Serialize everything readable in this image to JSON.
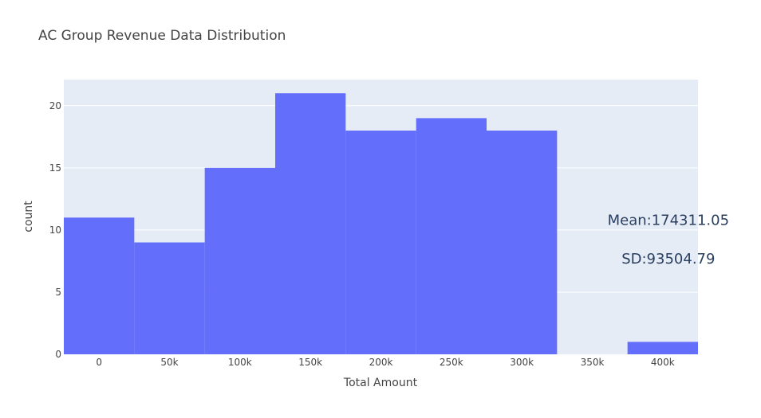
{
  "chart_data": {
    "type": "bar",
    "title": "AC Group Revenue Data Distribution",
    "xlabel": "Total Amount",
    "ylabel": "count",
    "bin_width": 50000,
    "bins": [
      {
        "start": -25000,
        "end": 25000,
        "count": 11
      },
      {
        "start": 25000,
        "end": 75000,
        "count": 9
      },
      {
        "start": 75000,
        "end": 125000,
        "count": 15
      },
      {
        "start": 125000,
        "end": 175000,
        "count": 21
      },
      {
        "start": 175000,
        "end": 225000,
        "count": 18
      },
      {
        "start": 225000,
        "end": 275000,
        "count": 19
      },
      {
        "start": 275000,
        "end": 325000,
        "count": 18
      },
      {
        "start": 325000,
        "end": 375000,
        "count": 0
      },
      {
        "start": 375000,
        "end": 425000,
        "count": 1
      }
    ],
    "xlim": [
      -25000,
      425000
    ],
    "ylim": [
      0,
      22.1
    ],
    "x_ticks": [
      {
        "value": 0,
        "label": "0"
      },
      {
        "value": 50000,
        "label": "50k"
      },
      {
        "value": 100000,
        "label": "100k"
      },
      {
        "value": 150000,
        "label": "150k"
      },
      {
        "value": 200000,
        "label": "200k"
      },
      {
        "value": 250000,
        "label": "250k"
      },
      {
        "value": 300000,
        "label": "300k"
      },
      {
        "value": 350000,
        "label": "350k"
      },
      {
        "value": 400000,
        "label": "400k"
      }
    ],
    "y_ticks": [
      {
        "value": 0,
        "label": "0"
      },
      {
        "value": 5,
        "label": "5"
      },
      {
        "value": 10,
        "label": "10"
      },
      {
        "value": 15,
        "label": "15"
      },
      {
        "value": 20,
        "label": "20"
      }
    ],
    "grid": true,
    "annotations": [
      {
        "text": "Mean:174311.05",
        "x": 400000,
        "y": 10.8
      },
      {
        "text": "SD:93504.79",
        "x": 400000,
        "y": 7.7
      }
    ]
  },
  "colors": {
    "bar": "#636efa",
    "plot_background": "#e5ecf6",
    "grid": "#ffffff",
    "text": "#444444",
    "annotation_text": "#2a3f5f"
  }
}
